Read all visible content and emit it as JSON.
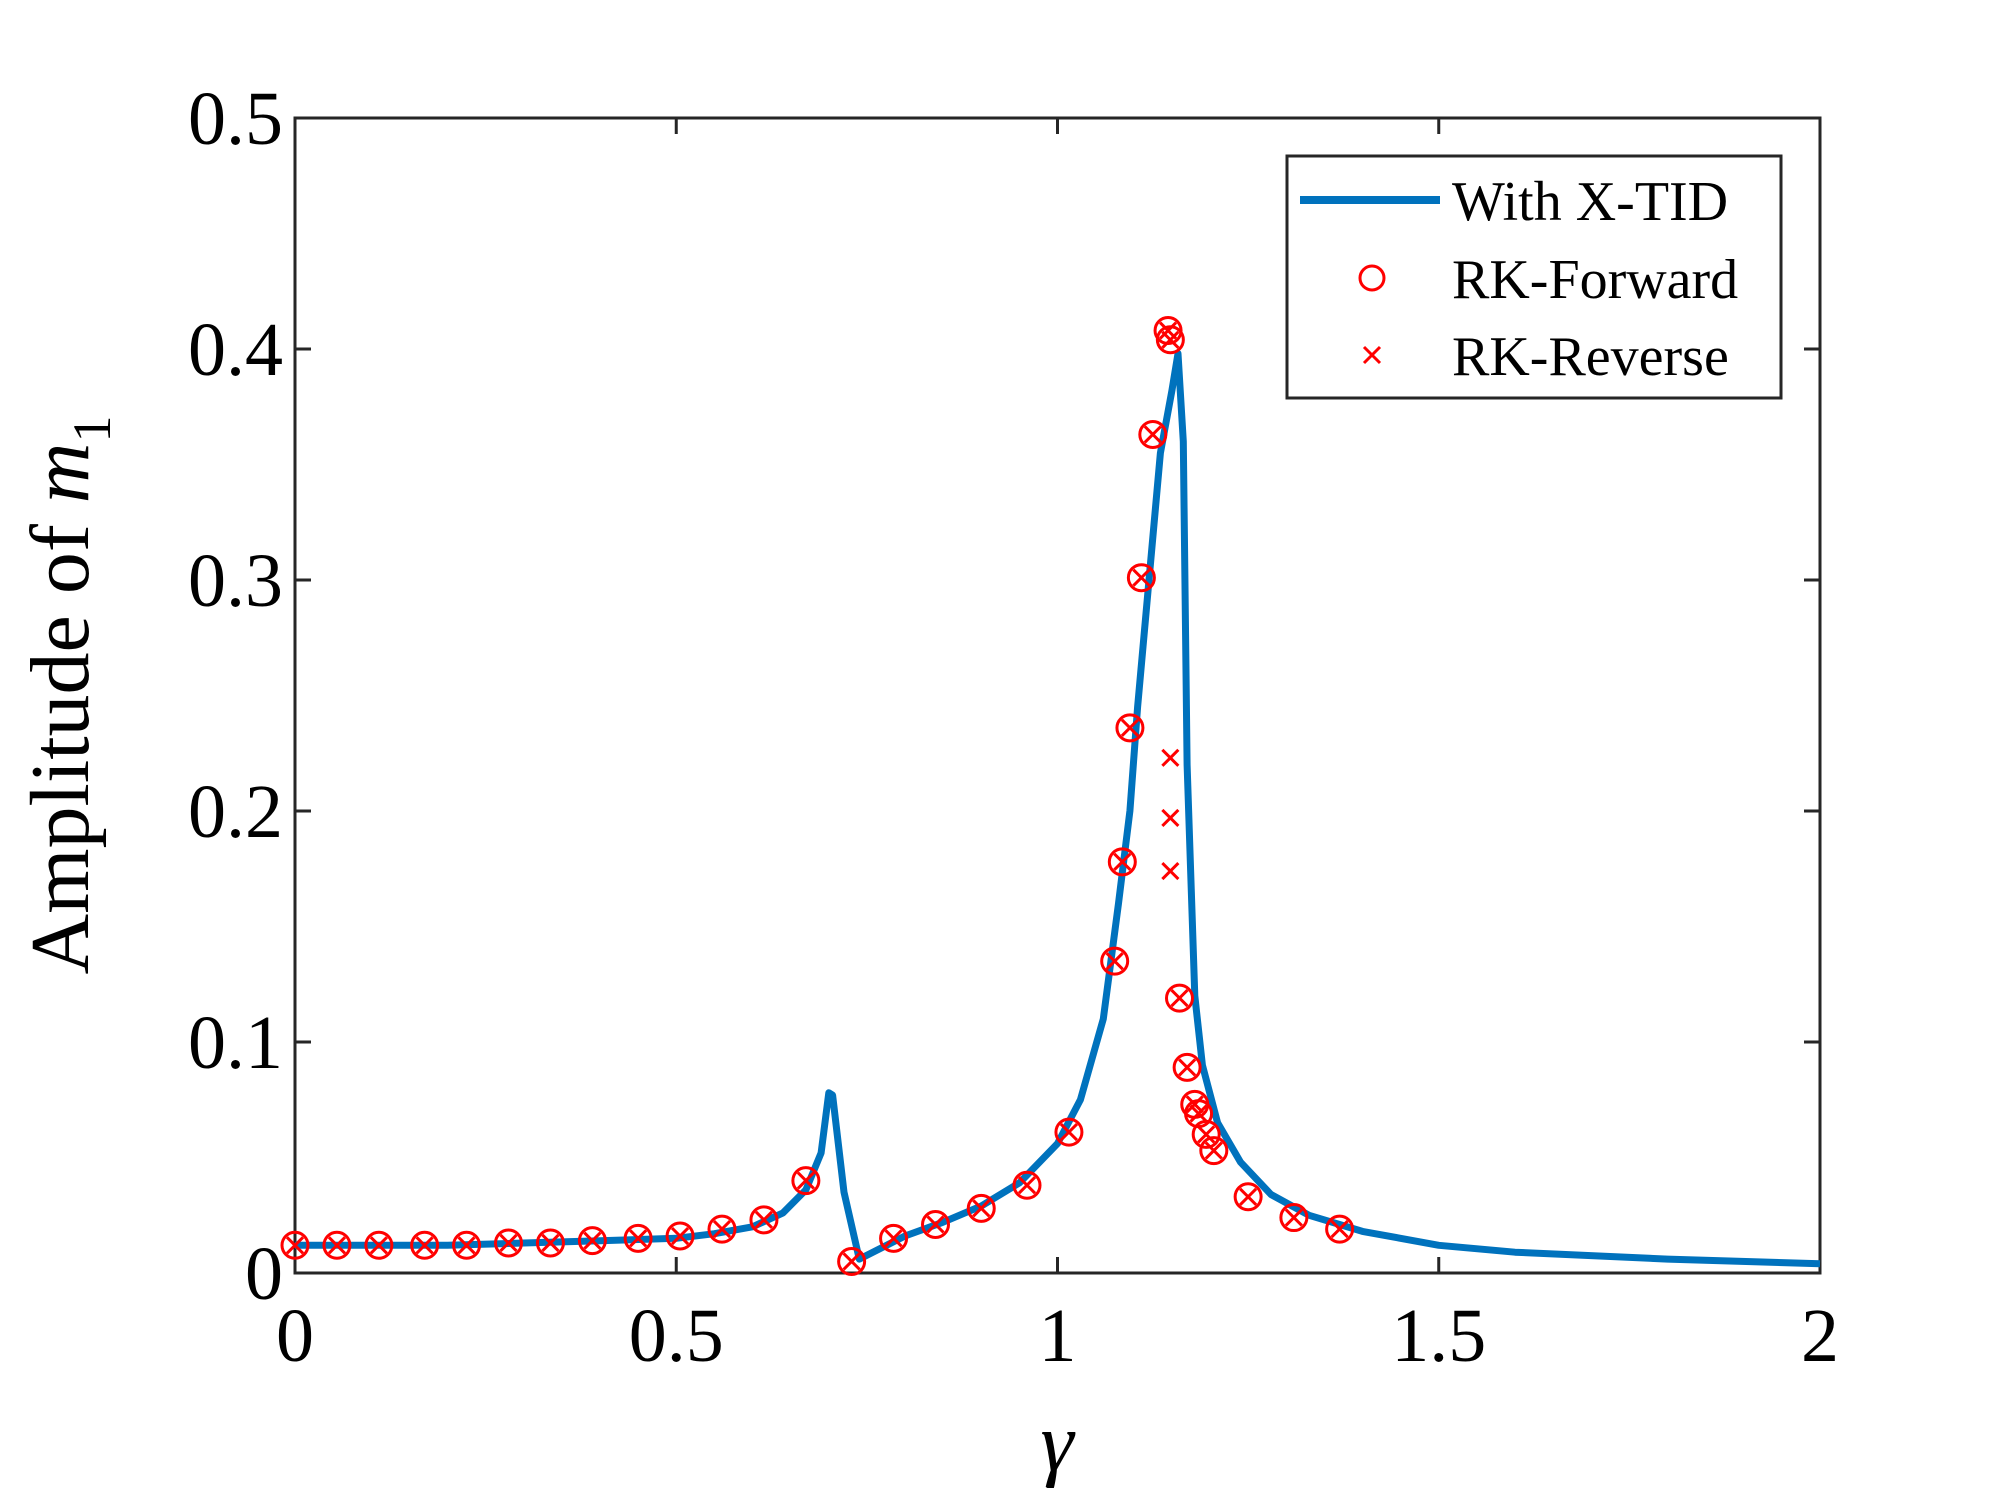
{
  "chart_data": {
    "type": "line",
    "title": "",
    "xlabel": "γ",
    "ylabel_prefix": "Amplitude of ",
    "ylabel_var": "m",
    "ylabel_sub": "1",
    "xlim": [
      0,
      2
    ],
    "ylim": [
      0,
      0.5
    ],
    "grid": false,
    "legend_position": "top-right",
    "xticks": [
      {
        "value": 0,
        "label": "0"
      },
      {
        "value": 0.5,
        "label": "0.5"
      },
      {
        "value": 1,
        "label": "1"
      },
      {
        "value": 1.5,
        "label": "1.5"
      },
      {
        "value": 2,
        "label": "2"
      }
    ],
    "yticks": [
      {
        "value": 0,
        "label": "0"
      },
      {
        "value": 0.1,
        "label": "0.1"
      },
      {
        "value": 0.2,
        "label": "0.2"
      },
      {
        "value": 0.3,
        "label": "0.3"
      },
      {
        "value": 0.4,
        "label": "0.4"
      },
      {
        "value": 0.5,
        "label": "0.5"
      }
    ],
    "colors": {
      "line": "#0072BD",
      "markers": "#FF0000"
    },
    "legend": [
      {
        "key": "line",
        "label": "With X-TID"
      },
      {
        "key": "forward",
        "label": "RK-Forward"
      },
      {
        "key": "reverse",
        "label": "RK-Reverse"
      }
    ],
    "series": [
      {
        "name": "With X-TID",
        "style": "line",
        "x": [
          0,
          0.1,
          0.2,
          0.3,
          0.4,
          0.5,
          0.55,
          0.6,
          0.64,
          0.67,
          0.69,
          0.7,
          0.705,
          0.72,
          0.74,
          0.8,
          0.85,
          0.9,
          0.95,
          1.0,
          1.03,
          1.06,
          1.08,
          1.095,
          1.105,
          1.12,
          1.135,
          1.15,
          1.158,
          1.165,
          1.17,
          1.18,
          1.19,
          1.21,
          1.24,
          1.28,
          1.33,
          1.4,
          1.5,
          1.6,
          1.8,
          2.0
        ],
        "y": [
          0.012,
          0.012,
          0.012,
          0.013,
          0.014,
          0.015,
          0.017,
          0.02,
          0.026,
          0.036,
          0.052,
          0.078,
          0.077,
          0.035,
          0.006,
          0.016,
          0.022,
          0.029,
          0.039,
          0.056,
          0.075,
          0.11,
          0.16,
          0.2,
          0.245,
          0.3,
          0.355,
          0.382,
          0.398,
          0.36,
          0.22,
          0.12,
          0.09,
          0.065,
          0.048,
          0.034,
          0.025,
          0.018,
          0.012,
          0.009,
          0.006,
          0.004
        ]
      },
      {
        "name": "RK-Forward",
        "style": "circle",
        "x": [
          0,
          0.055,
          0.11,
          0.17,
          0.225,
          0.28,
          0.335,
          0.39,
          0.45,
          0.505,
          0.56,
          0.615,
          0.67,
          0.73,
          0.785,
          0.84,
          0.9,
          0.96,
          1.015,
          1.075,
          1.085,
          1.095,
          1.11,
          1.125,
          1.145,
          1.148,
          1.16,
          1.17,
          1.18,
          1.185,
          1.195,
          1.205,
          1.25,
          1.31,
          1.37
        ],
        "y": [
          0.012,
          0.012,
          0.012,
          0.012,
          0.012,
          0.013,
          0.013,
          0.014,
          0.015,
          0.016,
          0.019,
          0.023,
          0.04,
          0.005,
          0.015,
          0.021,
          0.028,
          0.038,
          0.061,
          0.135,
          0.178,
          0.236,
          0.301,
          0.363,
          0.408,
          0.404,
          0.119,
          0.089,
          0.073,
          0.069,
          0.06,
          0.053,
          0.033,
          0.024,
          0.019
        ]
      },
      {
        "name": "RK-Reverse",
        "style": "cross",
        "x": [
          0,
          0.055,
          0.11,
          0.17,
          0.225,
          0.28,
          0.335,
          0.39,
          0.45,
          0.505,
          0.56,
          0.615,
          0.67,
          0.73,
          0.785,
          0.84,
          0.9,
          0.96,
          1.015,
          1.075,
          1.085,
          1.095,
          1.11,
          1.125,
          1.145,
          1.148,
          1.148,
          1.148,
          1.148,
          1.16,
          1.17,
          1.18,
          1.185,
          1.195,
          1.205,
          1.25,
          1.31,
          1.37
        ],
        "y": [
          0.012,
          0.012,
          0.012,
          0.012,
          0.012,
          0.013,
          0.013,
          0.014,
          0.015,
          0.016,
          0.019,
          0.023,
          0.04,
          0.005,
          0.015,
          0.021,
          0.028,
          0.038,
          0.061,
          0.135,
          0.178,
          0.236,
          0.301,
          0.363,
          0.408,
          0.404,
          0.223,
          0.197,
          0.174,
          0.119,
          0.089,
          0.073,
          0.069,
          0.06,
          0.053,
          0.033,
          0.024,
          0.019
        ]
      }
    ]
  }
}
